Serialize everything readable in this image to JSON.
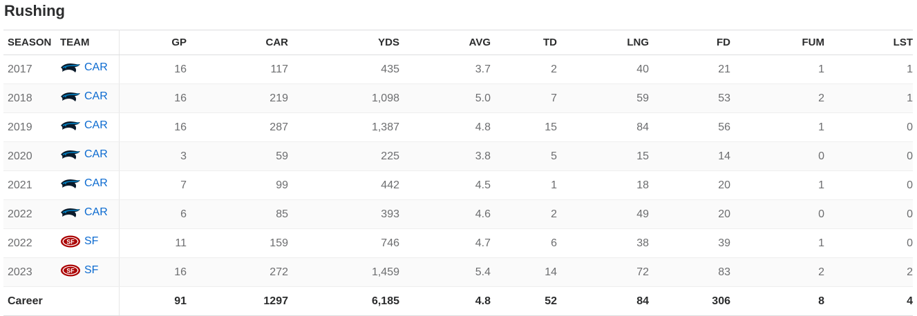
{
  "title": "Rushing",
  "columns": [
    "SEASON",
    "TEAM",
    "GP",
    "CAR",
    "YDS",
    "AVG",
    "TD",
    "LNG",
    "FD",
    "FUM",
    "LST"
  ],
  "rows": [
    {
      "season": "2017",
      "team": "CAR",
      "logo": "panthers-logo-icon",
      "gp": "16",
      "car": "117",
      "yds": "435",
      "avg": "3.7",
      "td": "2",
      "lng": "40",
      "fd": "21",
      "fum": "1",
      "lst": "1"
    },
    {
      "season": "2018",
      "team": "CAR",
      "logo": "panthers-logo-icon",
      "gp": "16",
      "car": "219",
      "yds": "1,098",
      "avg": "5.0",
      "td": "7",
      "lng": "59",
      "fd": "53",
      "fum": "2",
      "lst": "1"
    },
    {
      "season": "2019",
      "team": "CAR",
      "logo": "panthers-logo-icon",
      "gp": "16",
      "car": "287",
      "yds": "1,387",
      "avg": "4.8",
      "td": "15",
      "lng": "84",
      "fd": "56",
      "fum": "1",
      "lst": "0"
    },
    {
      "season": "2020",
      "team": "CAR",
      "logo": "panthers-logo-icon",
      "gp": "3",
      "car": "59",
      "yds": "225",
      "avg": "3.8",
      "td": "5",
      "lng": "15",
      "fd": "14",
      "fum": "0",
      "lst": "0"
    },
    {
      "season": "2021",
      "team": "CAR",
      "logo": "panthers-logo-icon",
      "gp": "7",
      "car": "99",
      "yds": "442",
      "avg": "4.5",
      "td": "1",
      "lng": "18",
      "fd": "20",
      "fum": "1",
      "lst": "0"
    },
    {
      "season": "2022",
      "team": "CAR",
      "logo": "panthers-logo-icon",
      "gp": "6",
      "car": "85",
      "yds": "393",
      "avg": "4.6",
      "td": "2",
      "lng": "49",
      "fd": "20",
      "fum": "0",
      "lst": "0"
    },
    {
      "season": "2022",
      "team": "SF",
      "logo": "49ers-logo-icon",
      "gp": "11",
      "car": "159",
      "yds": "746",
      "avg": "4.7",
      "td": "6",
      "lng": "38",
      "fd": "39",
      "fum": "1",
      "lst": "0"
    },
    {
      "season": "2023",
      "team": "SF",
      "logo": "49ers-logo-icon",
      "gp": "16",
      "car": "272",
      "yds": "1,459",
      "avg": "5.4",
      "td": "14",
      "lng": "72",
      "fd": "83",
      "fum": "2",
      "lst": "2"
    }
  ],
  "career": {
    "label": "Career",
    "gp": "91",
    "car": "1297",
    "yds": "6,185",
    "avg": "4.8",
    "td": "52",
    "lng": "84",
    "fd": "306",
    "fum": "8",
    "lst": "4"
  },
  "colors": {
    "link": "#0b6ad0",
    "panthers": "#0085ca",
    "niners": "#aa0000",
    "niners_gold": "#b3995d"
  }
}
